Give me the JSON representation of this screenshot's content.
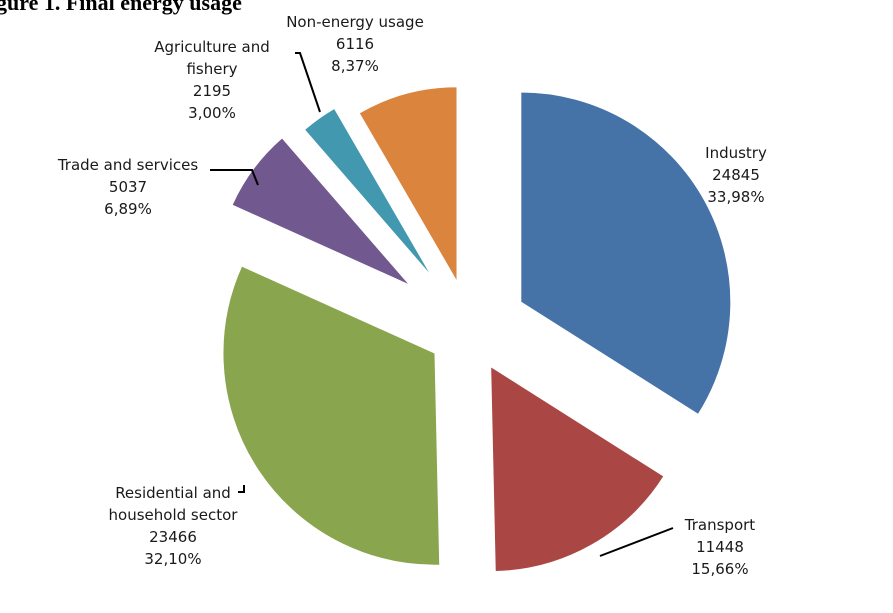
{
  "chart_data": {
    "type": "pie",
    "title": "gure 1. Final energy usage",
    "slices": [
      {
        "label_lines": [
          "Industry"
        ],
        "value": "24845",
        "percent": "33,98%",
        "color": "#4572a7"
      },
      {
        "label_lines": [
          "Transport"
        ],
        "value": "11448",
        "percent": "15,66%",
        "color": "#aa4643"
      },
      {
        "label_lines": [
          "Residential and",
          "household sector"
        ],
        "value": "23466",
        "percent": "32,10%",
        "color": "#89a54e"
      },
      {
        "label_lines": [
          "Trade and services"
        ],
        "value": "5037",
        "percent": "6,89%",
        "color": "#71588f"
      },
      {
        "label_lines": [
          "Agriculture and",
          "fishery"
        ],
        "value": "2195",
        "percent": "3,00%",
        "color": "#4198af"
      },
      {
        "label_lines": [
          "Non-energy usage"
        ],
        "value": "6116",
        "percent": "8,37%",
        "color": "#db843d"
      }
    ]
  }
}
